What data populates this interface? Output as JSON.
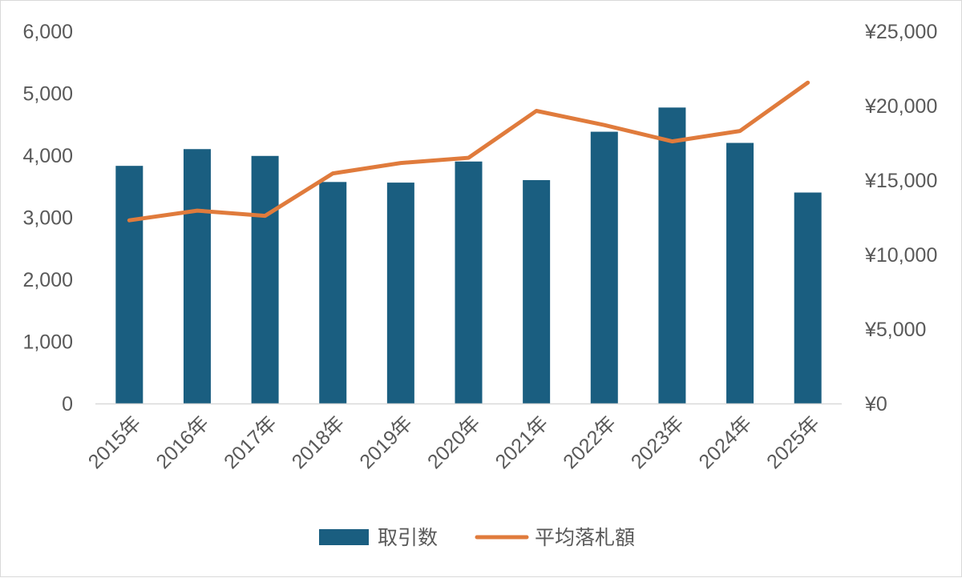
{
  "chart_data": {
    "type": "bar",
    "categories": [
      "2015年",
      "2016年",
      "2017年",
      "2018年",
      "2019年",
      "2020年",
      "2021年",
      "2022年",
      "2023年",
      "2024年",
      "2025年"
    ],
    "series": [
      {
        "name": "取引数",
        "type": "bar",
        "axis": "left",
        "color": "#1a5e80",
        "values": [
          3830,
          4100,
          3990,
          3570,
          3560,
          3900,
          3600,
          4380,
          4770,
          4200,
          3400
        ]
      },
      {
        "name": "平均落札額",
        "type": "line",
        "axis": "right",
        "color": "#e07b3c",
        "values": [
          12300,
          12950,
          12600,
          15450,
          16150,
          16500,
          19650,
          18700,
          17600,
          18300,
          21550
        ]
      }
    ],
    "y_left": {
      "lim": [
        0,
        6000
      ],
      "ticks": [
        0,
        1000,
        2000,
        3000,
        4000,
        5000,
        6000
      ],
      "tick_labels": [
        "0",
        "1,000",
        "2,000",
        "3,000",
        "4,000",
        "5,000",
        "6,000"
      ]
    },
    "y_right": {
      "lim": [
        0,
        25000
      ],
      "ticks": [
        0,
        5000,
        10000,
        15000,
        20000,
        25000
      ],
      "tick_labels": [
        "¥0",
        "¥5,000",
        "¥10,000",
        "¥15,000",
        "¥20,000",
        "¥25,000"
      ]
    },
    "grid": false,
    "legend": "bottom",
    "title": "",
    "xlabel": "",
    "ylabel": ""
  }
}
